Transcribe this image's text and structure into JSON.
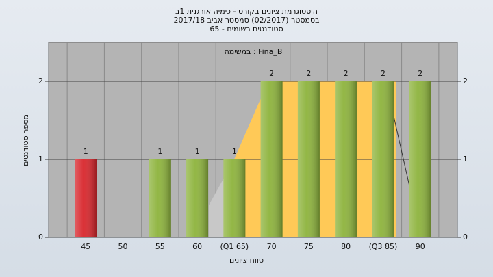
{
  "chart_data": {
    "type": "bar",
    "title": "היסטוגרמת ציונים בקורס - כימיה אורגנית 1ב",
    "subtitle": "בסמסטר  (02/2017)  סמסטר אביב 2017/18",
    "subtitle2": "סטודנטים רשומים - 65",
    "annotation": "במשימה : Fina_B",
    "x_label": "טווח ציונים",
    "y_label": "מספר סטודנטים",
    "categories": [
      "45",
      "50",
      "55",
      "60",
      "(Q1 65)",
      "70",
      "75",
      "80",
      "(Q3 85)",
      "90"
    ],
    "values": [
      1,
      0,
      1,
      1,
      1,
      2,
      2,
      2,
      2,
      2
    ],
    "colors": [
      "#d8262c",
      "#8db33c",
      "#8db33c",
      "#8db33c",
      "#8db33c",
      "#8db33c",
      "#8db33c",
      "#8db33c",
      "#8db33c",
      "#8db33c"
    ],
    "ylim": [
      0,
      2.5
    ],
    "yticks": [
      0,
      1,
      2
    ],
    "y2lim": [
      0,
      2.5
    ],
    "y2ticks": [
      0,
      1,
      2
    ],
    "grid": true
  }
}
